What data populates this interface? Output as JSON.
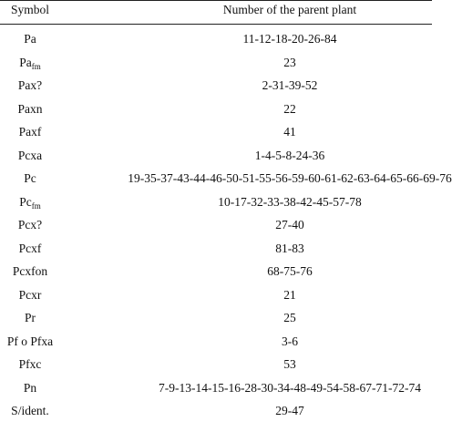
{
  "table": {
    "header": [
      "Symbol",
      "Number of the parent plant"
    ],
    "rows": [
      {
        "symbol": "Pa",
        "numbers": "11-12-18-20-26-84"
      },
      {
        "symbol": "Pa",
        "sub": "fm",
        "numbers": "23"
      },
      {
        "symbol": "Pax?",
        "numbers": "2-31-39-52"
      },
      {
        "symbol": "Paxn",
        "numbers": "22"
      },
      {
        "symbol": "Paxf",
        "numbers": "41"
      },
      {
        "symbol": "Pcxa",
        "numbers": "1-4-5-8-24-36"
      },
      {
        "symbol": "Pc",
        "numbers": "19-35-37-43-44-46-50-51-55-56-59-60-61-62-63-64-65-66-69-76"
      },
      {
        "symbol": "Pc",
        "sub": "fm",
        "numbers": "10-17-32-33-38-42-45-57-78"
      },
      {
        "symbol": "Pcx?",
        "numbers": "27-40"
      },
      {
        "symbol": "Pcxf",
        "numbers": "81-83"
      },
      {
        "symbol": "Pcxfon",
        "numbers": "68-75-76"
      },
      {
        "symbol": "Pcxr",
        "numbers": "21"
      },
      {
        "symbol": "Pr",
        "numbers": "25"
      },
      {
        "symbol": "Pf o Pfxa",
        "numbers": "3-6"
      },
      {
        "symbol": "Pfxc",
        "numbers": "53"
      },
      {
        "symbol": "Pn",
        "numbers": "7-9-13-14-15-16-28-30-34-48-49-54-58-67-71-72-74"
      },
      {
        "symbol": "S/ident.",
        "numbers": "29-47"
      }
    ]
  }
}
